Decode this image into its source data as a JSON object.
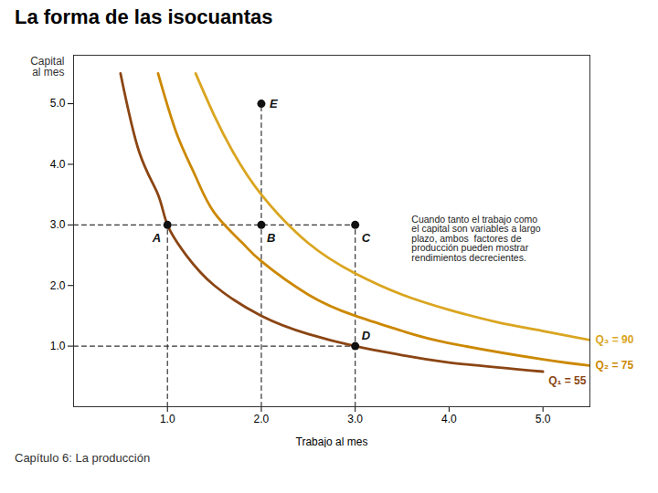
{
  "chart_data": {
    "type": "line",
    "title": "La forma de las isocuantas",
    "caption": "Capítulo 6: La producción",
    "xlabel": "Trabajo al mes",
    "ylabel": "Capital\nal mes",
    "xlim": [
      0,
      5.5
    ],
    "ylim": [
      0,
      5.8
    ],
    "xticks": [
      1,
      2,
      3,
      4,
      5
    ],
    "yticks": [
      1,
      2,
      3,
      4,
      5
    ],
    "grid": false,
    "series": [
      {
        "name": "Q₁ = 55",
        "color": "#8B4513",
        "x": [
          0.5,
          0.7,
          0.9,
          1.0,
          1.2,
          1.5,
          2.0,
          2.5,
          3.0,
          3.5,
          4.0,
          5.0
        ],
        "values": [
          5.5,
          4.2,
          3.5,
          3.0,
          2.5,
          2.0,
          1.5,
          1.2,
          1.0,
          0.85,
          0.73,
          0.58
        ]
      },
      {
        "name": "Q₂ = 75",
        "color": "#CC8800",
        "x": [
          0.9,
          1.1,
          1.3,
          1.5,
          1.8,
          2.0,
          2.5,
          3.0,
          3.5,
          4.0,
          5.0,
          5.5
        ],
        "values": [
          5.5,
          4.5,
          3.8,
          3.2,
          2.7,
          2.4,
          1.85,
          1.5,
          1.25,
          1.05,
          0.78,
          0.68
        ]
      },
      {
        "name": "Q₃ = 90",
        "color": "#DAA520",
        "x": [
          1.3,
          1.5,
          1.7,
          2.0,
          2.5,
          3.0,
          3.5,
          4.0,
          4.5,
          5.0,
          5.5
        ],
        "values": [
          5.5,
          4.8,
          4.2,
          3.5,
          2.7,
          2.2,
          1.85,
          1.6,
          1.4,
          1.25,
          1.1
        ]
      }
    ],
    "points": {
      "type": "scatter",
      "color": "#111111",
      "x": [
        1,
        2,
        3,
        3,
        2
      ],
      "values": [
        3,
        3,
        3,
        1,
        5
      ],
      "labels": [
        "A",
        "B",
        "C",
        "D",
        "E"
      ]
    },
    "dashed_lines": [
      {
        "x": [
          1,
          1
        ],
        "values": [
          0,
          3
        ],
        "color": "#333333",
        "line_style": "dashed"
      },
      {
        "x": [
          0,
          3
        ],
        "values": [
          3,
          3
        ],
        "color": "#333333",
        "line_style": "dashed"
      },
      {
        "x": [
          2,
          2
        ],
        "values": [
          0,
          5
        ],
        "color": "#333333",
        "line_style": "dashed"
      },
      {
        "x": [
          3,
          3
        ],
        "values": [
          0,
          3
        ],
        "color": "#333333",
        "line_style": "dashed"
      },
      {
        "x": [
          0,
          3
        ],
        "values": [
          1,
          1
        ],
        "color": "#333333",
        "line_style": "dashed"
      }
    ],
    "annotations": [
      {
        "text": "Cuando tanto el trabajo como\nel capital son variables a largo\nplazo, ambos  factores de\nproducción pueden mostrar\nrendimientos decrecientes.",
        "x": 3.6,
        "y": 3.15
      }
    ]
  }
}
